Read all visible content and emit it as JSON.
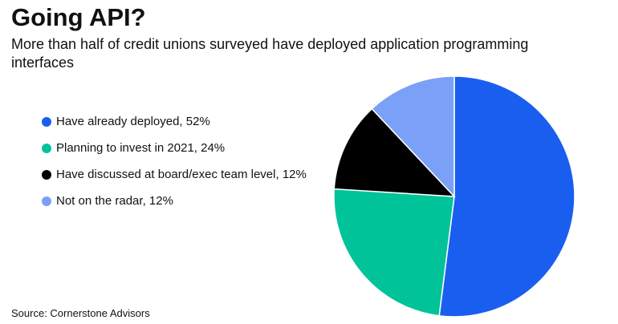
{
  "chart_data": {
    "type": "pie",
    "title": "Going API?",
    "subtitle": "More than half of credit unions surveyed have deployed application programming interfaces",
    "source": "Source: Cornerstone Advisors",
    "categories": [
      "Have already deployed, 52%",
      "Planning to invest in 2021, 24%",
      "Have discussed at board/exec team level, 12%",
      "Not on the radar, 12%"
    ],
    "values": [
      52,
      24,
      12,
      12
    ],
    "colors": [
      "#1a5ef0",
      "#00c39a",
      "#000000",
      "#7aa0f7"
    ]
  }
}
